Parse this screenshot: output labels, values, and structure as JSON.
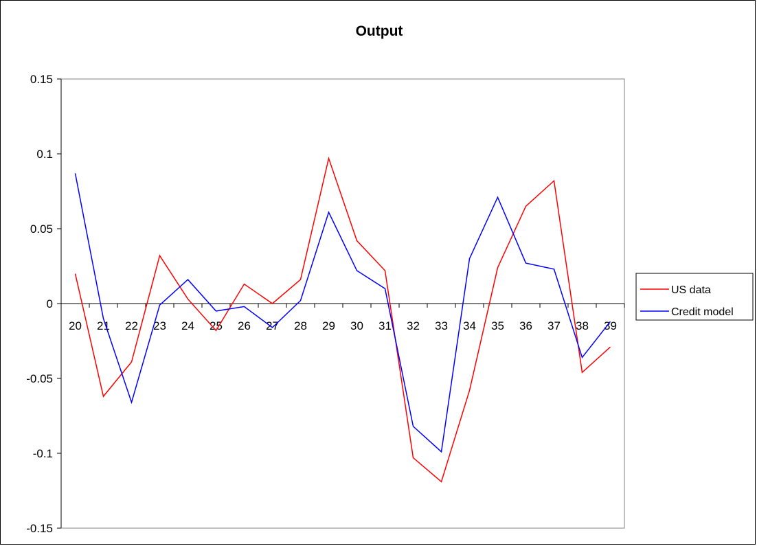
{
  "chart_data": {
    "type": "line",
    "title": "Output",
    "xlabel": "",
    "ylabel": "",
    "categories": [
      "20",
      "21",
      "22",
      "23",
      "24",
      "25",
      "26",
      "27",
      "28",
      "29",
      "30",
      "31",
      "32",
      "33",
      "34",
      "35",
      "36",
      "37",
      "38",
      "39"
    ],
    "ylim": [
      -0.15,
      0.15
    ],
    "yticks": [
      -0.15,
      -0.1,
      -0.05,
      0,
      0.05,
      0.1,
      0.15
    ],
    "ytick_labels": [
      "-0.15",
      "-0.1",
      "-0.05",
      "0",
      "0.05",
      "0.1",
      "0.15"
    ],
    "grid": false,
    "legend_position": "right",
    "series": [
      {
        "name": "US data",
        "color": "#ff0000",
        "values": [
          0.02,
          -0.062,
          -0.039,
          0.032,
          0.003,
          -0.018,
          0.013,
          0.0,
          0.016,
          0.097,
          0.042,
          0.022,
          -0.103,
          -0.119,
          -0.058,
          0.024,
          0.065,
          0.082,
          -0.046,
          -0.029
        ]
      },
      {
        "name": "Credit model",
        "color": "#0000ff",
        "values": [
          0.087,
          -0.01,
          -0.066,
          -0.001,
          0.016,
          -0.005,
          -0.002,
          -0.016,
          0.002,
          0.061,
          0.022,
          0.01,
          -0.082,
          -0.099,
          0.03,
          0.071,
          0.027,
          0.023,
          -0.036,
          -0.012
        ]
      }
    ]
  }
}
